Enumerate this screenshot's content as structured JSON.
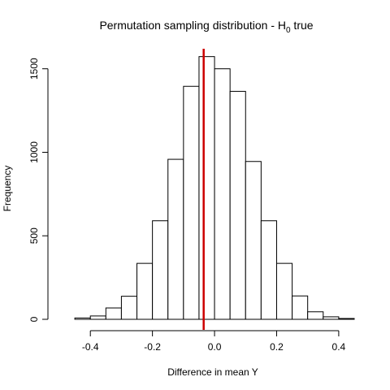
{
  "chart_data": {
    "type": "bar",
    "title_main": "Permutation sampling distribution - H",
    "title_sub": "0",
    "title_tail": " true",
    "xlabel": "Difference in mean Y",
    "ylabel": "Frequency",
    "xlim": [
      -0.5,
      0.45
    ],
    "ylim": [
      0,
      1620
    ],
    "x_ticks": [
      -0.4,
      -0.2,
      0.0,
      0.2,
      0.4
    ],
    "x_tick_labels": [
      "-0.4",
      "-0.2",
      "0.0",
      "0.2",
      "0.4"
    ],
    "y_ticks": [
      0,
      500,
      1000,
      1500
    ],
    "y_tick_labels": [
      "0",
      "500",
      "1000",
      "1500"
    ],
    "bin_width": 0.05,
    "bins": [
      {
        "start": -0.45,
        "end": -0.4,
        "count": 8
      },
      {
        "start": -0.4,
        "end": -0.35,
        "count": 20
      },
      {
        "start": -0.35,
        "end": -0.3,
        "count": 68
      },
      {
        "start": -0.3,
        "end": -0.25,
        "count": 138
      },
      {
        "start": -0.25,
        "end": -0.2,
        "count": 335
      },
      {
        "start": -0.2,
        "end": -0.15,
        "count": 590
      },
      {
        "start": -0.15,
        "end": -0.1,
        "count": 958
      },
      {
        "start": -0.1,
        "end": -0.05,
        "count": 1395
      },
      {
        "start": -0.05,
        "end": 0.0,
        "count": 1573
      },
      {
        "start": 0.0,
        "end": 0.05,
        "count": 1500
      },
      {
        "start": 0.05,
        "end": 0.1,
        "count": 1365
      },
      {
        "start": 0.1,
        "end": 0.15,
        "count": 945
      },
      {
        "start": 0.15,
        "end": 0.2,
        "count": 590
      },
      {
        "start": 0.2,
        "end": 0.25,
        "count": 335
      },
      {
        "start": 0.25,
        "end": 0.3,
        "count": 140
      },
      {
        "start": 0.3,
        "end": 0.35,
        "count": 45
      },
      {
        "start": 0.35,
        "end": 0.4,
        "count": 15
      },
      {
        "start": 0.4,
        "end": 0.45,
        "count": 5
      }
    ],
    "observed_line": {
      "x": -0.035,
      "color": "#cc0000"
    },
    "bar_fill": "#ffffff",
    "bar_stroke": "#000000"
  }
}
